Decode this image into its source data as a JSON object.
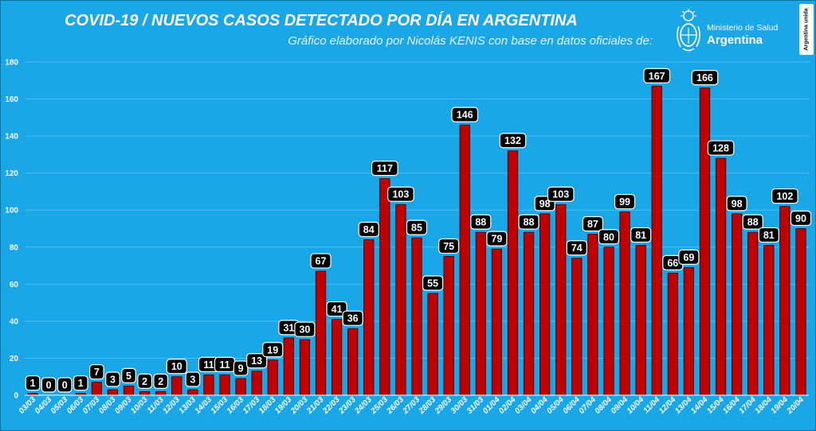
{
  "header": {
    "title": "COVID-19  /  NUEVOS CASOS DETECTADO POR DÍA EN ARGENTINA",
    "subtitle": "Gráfico elaborado por Nicolás KENIS con base en datos oficiales de:"
  },
  "logo": {
    "line1": "Ministerio de Salud",
    "line2": "Argentina",
    "emblem_icon": "argentina-coat-of-arms-icon"
  },
  "badge": {
    "text": "Argentina unida"
  },
  "colors": {
    "background": "#1aa7e8",
    "bar_fill": "#c00000",
    "bar_stroke": "#3a0000",
    "label_bg": "#000000",
    "text": "#ffffff",
    "grid": "#4cc0f0"
  },
  "chart_data": {
    "type": "bar",
    "title": "COVID-19  /  NUEVOS CASOS DETECTADO POR DÍA EN ARGENTINA",
    "xlabel": "",
    "ylabel": "",
    "ylim": [
      0,
      180
    ],
    "yticks": [
      0,
      20,
      40,
      60,
      80,
      100,
      120,
      140,
      160,
      180
    ],
    "grid": true,
    "legend": "none",
    "categories": [
      "03/03",
      "04/03",
      "05/03",
      "06/03",
      "07/03",
      "08/03",
      "09/03",
      "10/03",
      "11/03",
      "12/03",
      "13/03",
      "14/03",
      "15/03",
      "16/03",
      "17/03",
      "18/03",
      "19/03",
      "20/03",
      "21/03",
      "22/03",
      "23/03",
      "24/03",
      "25/03",
      "26/03",
      "27/03",
      "28/03",
      "29/03",
      "30/03",
      "31/03",
      "01/04",
      "02/04",
      "03/04",
      "04/04",
      "05/04",
      "06/04",
      "07/04",
      "08/04",
      "09/04",
      "10/04",
      "11/04",
      "12/04",
      "13/04",
      "14/04",
      "15/04",
      "16/04",
      "17/04",
      "18/04",
      "19/04",
      "20/04"
    ],
    "values": [
      1,
      0,
      0,
      1,
      7,
      3,
      5,
      2,
      2,
      10,
      3,
      11,
      11,
      9,
      13,
      19,
      31,
      30,
      67,
      41,
      36,
      84,
      117,
      103,
      85,
      55,
      75,
      146,
      88,
      79,
      132,
      88,
      98,
      103,
      74,
      87,
      80,
      99,
      81,
      167,
      66,
      69,
      166,
      128,
      98,
      88,
      81,
      102,
      90
    ]
  }
}
